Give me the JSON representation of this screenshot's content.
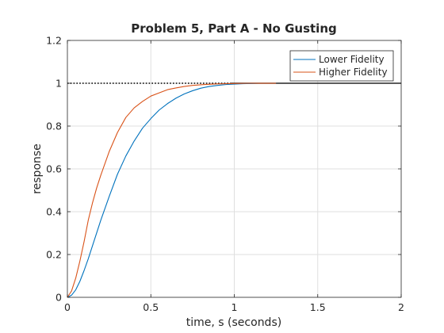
{
  "chart_data": {
    "type": "line",
    "title": "Problem 5, Part A - No Gusting",
    "xlabel": "time, s (seconds)",
    "ylabel": "response",
    "xlim": [
      0,
      2
    ],
    "ylim": [
      0,
      1.2
    ],
    "xticks": [
      0,
      0.5,
      1,
      1.5,
      2
    ],
    "yticks": [
      0,
      0.2,
      0.4,
      0.6,
      0.8,
      1,
      1.2
    ],
    "xtick_labels": [
      "0",
      "0.5",
      "1",
      "1.5",
      "2"
    ],
    "ytick_labels": [
      "0",
      "0.2",
      "0.4",
      "0.6",
      "0.8",
      "1",
      "1.2"
    ],
    "grid": true,
    "legend_position": "top-right",
    "reference_lines": [
      {
        "y": 1,
        "x_range": [
          0,
          0.98
        ],
        "style": "dotted",
        "color": "#000000"
      },
      {
        "y": 1,
        "x_range": [
          0.98,
          2
        ],
        "style": "solid",
        "color": "#262626"
      }
    ],
    "series": [
      {
        "name": "Lower Fidelity",
        "color": "#0072BD",
        "x": [
          0,
          0.025,
          0.05,
          0.075,
          0.1,
          0.125,
          0.15,
          0.2,
          0.25,
          0.3,
          0.35,
          0.4,
          0.45,
          0.5,
          0.55,
          0.6,
          0.65,
          0.7,
          0.75,
          0.8,
          0.85,
          0.9,
          0.95,
          1.0,
          1.05,
          1.1,
          1.15,
          1.2,
          1.25
        ],
        "y": [
          0,
          0.01,
          0.035,
          0.075,
          0.125,
          0.18,
          0.24,
          0.36,
          0.47,
          0.575,
          0.66,
          0.73,
          0.79,
          0.835,
          0.875,
          0.905,
          0.93,
          0.95,
          0.965,
          0.977,
          0.985,
          0.99,
          0.994,
          0.996,
          0.998,
          0.999,
          1.0,
          1.0,
          1.0
        ]
      },
      {
        "name": "Higher Fidelity",
        "color": "#D95319",
        "x": [
          0,
          0.025,
          0.05,
          0.075,
          0.1,
          0.125,
          0.15,
          0.175,
          0.2,
          0.25,
          0.3,
          0.35,
          0.4,
          0.45,
          0.5,
          0.55,
          0.6,
          0.65,
          0.7,
          0.75,
          0.8,
          0.85,
          0.9,
          0.95,
          1.0,
          1.1,
          1.2,
          1.25
        ],
        "y": [
          0,
          0.03,
          0.09,
          0.17,
          0.26,
          0.36,
          0.44,
          0.51,
          0.57,
          0.68,
          0.77,
          0.84,
          0.885,
          0.915,
          0.94,
          0.955,
          0.97,
          0.978,
          0.985,
          0.99,
          0.993,
          0.995,
          0.997,
          0.998,
          0.999,
          1.0,
          1.0,
          1.0
        ]
      }
    ]
  }
}
